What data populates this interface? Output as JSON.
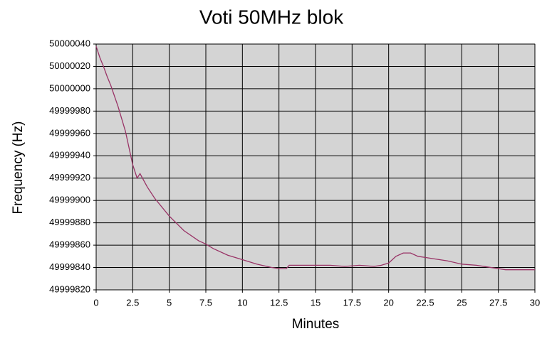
{
  "chart_data": {
    "type": "line",
    "title": "Voti 50MHz blok",
    "x_label": "Minutes",
    "y_label": "Frequency (Hz)",
    "x": [
      0,
      0.25,
      0.5,
      0.75,
      1,
      1.5,
      2,
      2.5,
      2.8,
      3,
      3.5,
      4,
      5,
      6,
      7,
      7.5,
      8,
      9,
      10,
      11,
      12,
      12.5,
      13,
      13.2,
      14,
      15,
      16,
      17,
      18,
      19,
      19.5,
      20,
      20.5,
      21,
      21.5,
      22,
      22.5,
      23,
      24,
      25,
      26,
      27,
      28,
      29,
      30
    ],
    "series": [
      {
        "name": "Frequency",
        "color": "#993366",
        "values": [
          50000038,
          50000028,
          50000020,
          50000011,
          50000003,
          49999984,
          49999962,
          49999932,
          49999920,
          49999924,
          49999912,
          49999902,
          49999886,
          49999873,
          49999864,
          49999861,
          49999857,
          49999851,
          49999847,
          49999843,
          49999840,
          49999839,
          49999839,
          49999842,
          49999842,
          49999842,
          49999842,
          49999841,
          49999842,
          49999841,
          49999842,
          49999844,
          49999850,
          49999853,
          49999853,
          49999850,
          49999849,
          49999848,
          49999846,
          49999843,
          49999842,
          49999840,
          49999838,
          49999838,
          49999838
        ]
      }
    ],
    "xlim": [
      0,
      30
    ],
    "xticks": [
      0,
      2.5,
      5,
      7.5,
      10,
      12.5,
      15,
      17.5,
      20,
      22.5,
      25,
      27.5,
      30
    ],
    "ylim": [
      49999820,
      50000040
    ],
    "yticks": [
      49999820,
      49999840,
      49999860,
      49999880,
      49999900,
      49999920,
      49999940,
      49999960,
      49999980,
      50000000,
      50000020,
      50000040
    ],
    "grid": true,
    "plot_background": "#d4d4d4"
  }
}
